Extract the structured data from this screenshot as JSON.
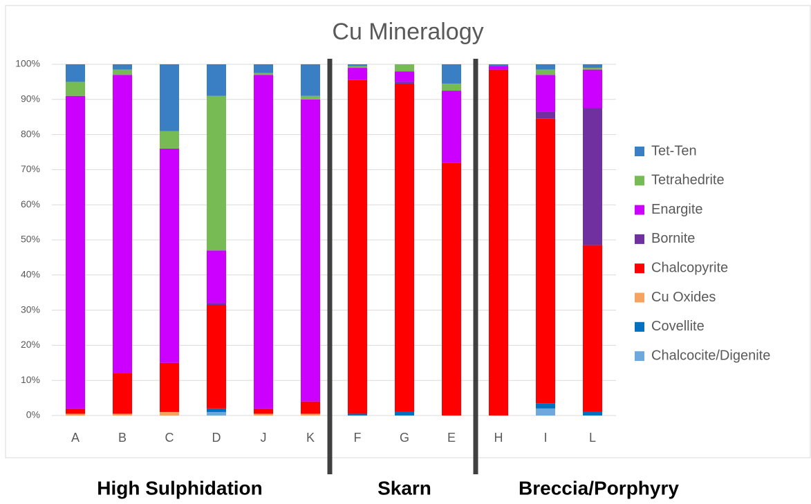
{
  "chart_data": {
    "type": "stacked_bar",
    "title": "Cu Mineralogy",
    "categories": [
      "A",
      "B",
      "C",
      "D",
      "J",
      "K",
      "F",
      "G",
      "E",
      "H",
      "I",
      "L"
    ],
    "series": [
      {
        "name": "Chalcocite/Digenite",
        "color": "#6fa8dc",
        "values": [
          0,
          0,
          0,
          1,
          0,
          0,
          0,
          0,
          0,
          0,
          2,
          0
        ]
      },
      {
        "name": "Covellite",
        "color": "#0070c0",
        "values": [
          0,
          0,
          0,
          1,
          0,
          0,
          0.5,
          1,
          0,
          0,
          1.5,
          1
        ]
      },
      {
        "name": "Cu Oxides",
        "color": "#f4a460",
        "values": [
          0.5,
          0.5,
          1,
          0,
          0.5,
          0.5,
          0,
          0,
          0,
          0,
          0,
          0
        ]
      },
      {
        "name": "Chalcopyrite",
        "color": "#ff0000",
        "values": [
          1.5,
          11.5,
          14,
          29.5,
          1.5,
          3.5,
          95,
          93.5,
          72,
          98.5,
          81,
          47.5
        ]
      },
      {
        "name": "Bornite",
        "color": "#7030a0",
        "values": [
          0,
          0,
          0,
          0.5,
          0,
          0,
          0,
          0.5,
          0,
          0,
          2,
          39
        ]
      },
      {
        "name": "Enargite",
        "color": "#cc00ff",
        "values": [
          89,
          85,
          61,
          15,
          95,
          86,
          3.5,
          3,
          20.5,
          1,
          10.5,
          11
        ]
      },
      {
        "name": "Tetrahedrite",
        "color": "#77bb55",
        "values": [
          4,
          1.5,
          5,
          44,
          0.5,
          1,
          0.5,
          2,
          2,
          0,
          1.5,
          0.5
        ]
      },
      {
        "name": "Tet-Ten",
        "color": "#3a7fc4",
        "values": [
          5,
          1.5,
          19,
          9,
          2.5,
          9,
          0.5,
          0,
          5.5,
          0.5,
          1.5,
          1
        ]
      }
    ],
    "ylim": [
      0,
      100
    ],
    "yticks": [
      {
        "value": 0,
        "label": "0%"
      },
      {
        "value": 10,
        "label": "10%"
      },
      {
        "value": 20,
        "label": "20%"
      },
      {
        "value": 30,
        "label": "30%"
      },
      {
        "value": 40,
        "label": "40%"
      },
      {
        "value": 50,
        "label": "50%"
      },
      {
        "value": 60,
        "label": "60%"
      },
      {
        "value": 70,
        "label": "70%"
      },
      {
        "value": 80,
        "label": "80%"
      },
      {
        "value": 90,
        "label": "90%"
      },
      {
        "value": 100,
        "label": "100%"
      }
    ],
    "grid": true,
    "legend": "right",
    "groups": [
      "High Sulphidation",
      "Skarn",
      "Breccia/Porphyry"
    ]
  }
}
